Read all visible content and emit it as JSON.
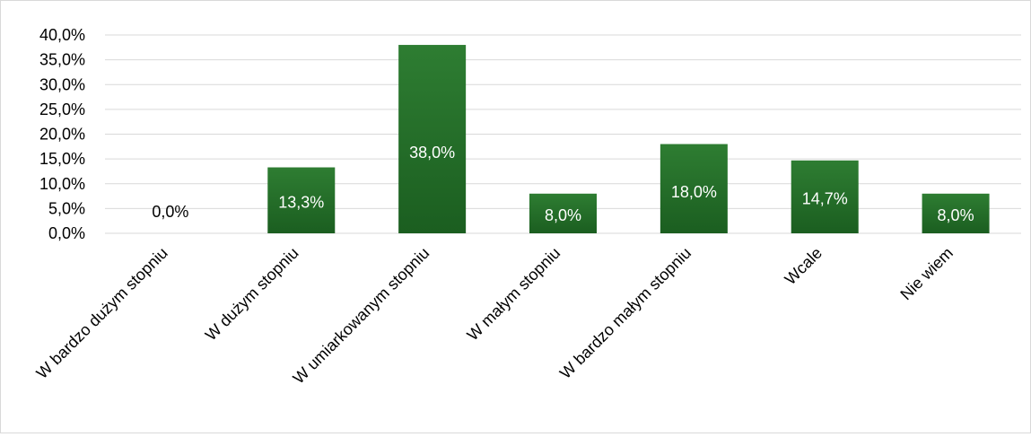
{
  "chart_data": {
    "type": "bar",
    "title": "",
    "xlabel": "",
    "ylabel": "",
    "categories": [
      "W bardzo dużym stopniu",
      "W dużym stopniu",
      "W umiarkowanym stopniu",
      "W małym stopniu",
      "W bardzo małym stopniu",
      "Wcale",
      "Nie wiem"
    ],
    "values": [
      0.0,
      13.3,
      38.0,
      8.0,
      18.0,
      14.7,
      8.0
    ],
    "data_labels": [
      "0,0%",
      "13,3%",
      "38,0%",
      "8,0%",
      "18,0%",
      "14,7%",
      "8,0%"
    ],
    "yticks": [
      "0,0%",
      "5,0%",
      "10,0%",
      "15,0%",
      "20,0%",
      "25,0%",
      "30,0%",
      "35,0%",
      "40,0%"
    ],
    "ylim": [
      0,
      40
    ],
    "grid": true,
    "legend": "none",
    "colors": {
      "bar_top": "#2e7d32",
      "bar_bottom": "#1b5e20",
      "grid": "#d9d9d9",
      "label_inside": "#ffffff",
      "label_outside": "#000000",
      "tick_text": "#000000"
    }
  }
}
